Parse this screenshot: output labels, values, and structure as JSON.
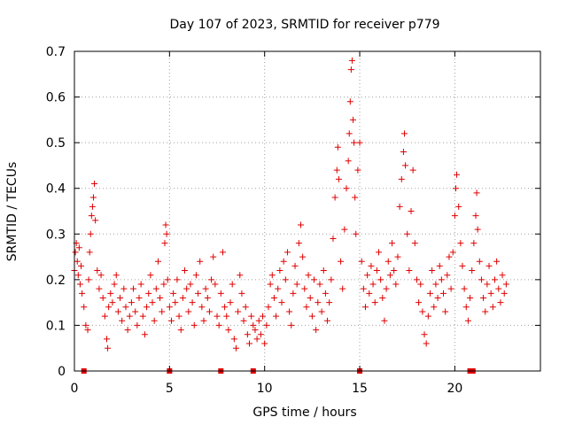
{
  "chart_data": {
    "type": "scatter",
    "title": "Day 107 of 2023, SRMTID for receiver p779",
    "xlabel": "GPS time / hours",
    "ylabel": "SRMTID / TECUs",
    "xlim": [
      0,
      24.5
    ],
    "ylim": [
      0,
      0.7
    ],
    "xticks": [
      0,
      5,
      10,
      15,
      20
    ],
    "yticks": [
      0,
      0.1,
      0.2,
      0.3,
      0.4,
      0.5,
      0.6,
      0.7
    ],
    "xtick_labels": [
      "0",
      "5",
      "10",
      "15",
      "20"
    ],
    "ytick_labels": [
      "0",
      "0.1",
      "0.2",
      "0.3",
      "0.4",
      "0.5",
      "0.6",
      "0.7"
    ],
    "grid": true,
    "marker": "plus",
    "color": "#e00000",
    "baseline_markers_x": [
      0.5,
      5.0,
      7.7,
      9.4,
      15.0,
      20.8,
      20.95
    ],
    "series": [
      {
        "name": "p779",
        "points": [
          [
            0.0,
            0.22
          ],
          [
            0.05,
            0.26
          ],
          [
            0.1,
            0.28
          ],
          [
            0.15,
            0.24
          ],
          [
            0.2,
            0.21
          ],
          [
            0.25,
            0.27
          ],
          [
            0.3,
            0.19
          ],
          [
            0.35,
            0.23
          ],
          [
            0.4,
            0.17
          ],
          [
            0.5,
            0.14
          ],
          [
            0.6,
            0.1
          ],
          [
            0.7,
            0.09
          ],
          [
            0.75,
            0.2
          ],
          [
            0.8,
            0.26
          ],
          [
            0.85,
            0.3
          ],
          [
            0.9,
            0.34
          ],
          [
            0.95,
            0.36
          ],
          [
            1.0,
            0.38
          ],
          [
            1.05,
            0.41
          ],
          [
            1.1,
            0.33
          ],
          [
            1.2,
            0.22
          ],
          [
            1.3,
            0.18
          ],
          [
            1.4,
            0.21
          ],
          [
            1.5,
            0.16
          ],
          [
            1.6,
            0.12
          ],
          [
            1.7,
            0.07
          ],
          [
            1.75,
            0.05
          ],
          [
            1.8,
            0.14
          ],
          [
            1.9,
            0.17
          ],
          [
            2.0,
            0.15
          ],
          [
            2.1,
            0.19
          ],
          [
            2.2,
            0.21
          ],
          [
            2.3,
            0.13
          ],
          [
            2.4,
            0.16
          ],
          [
            2.5,
            0.11
          ],
          [
            2.6,
            0.18
          ],
          [
            2.7,
            0.14
          ],
          [
            2.8,
            0.09
          ],
          [
            2.9,
            0.12
          ],
          [
            3.0,
            0.15
          ],
          [
            3.1,
            0.18
          ],
          [
            3.2,
            0.13
          ],
          [
            3.3,
            0.1
          ],
          [
            3.4,
            0.16
          ],
          [
            3.5,
            0.19
          ],
          [
            3.6,
            0.12
          ],
          [
            3.7,
            0.08
          ],
          [
            3.8,
            0.14
          ],
          [
            3.9,
            0.17
          ],
          [
            4.0,
            0.21
          ],
          [
            4.1,
            0.15
          ],
          [
            4.2,
            0.11
          ],
          [
            4.3,
            0.18
          ],
          [
            4.4,
            0.24
          ],
          [
            4.5,
            0.16
          ],
          [
            4.6,
            0.13
          ],
          [
            4.7,
            0.19
          ],
          [
            4.75,
            0.28
          ],
          [
            4.8,
            0.32
          ],
          [
            4.85,
            0.3
          ],
          [
            4.9,
            0.2
          ],
          [
            5.0,
            0.14
          ],
          [
            5.1,
            0.11
          ],
          [
            5.2,
            0.17
          ],
          [
            5.3,
            0.15
          ],
          [
            5.4,
            0.2
          ],
          [
            5.5,
            0.12
          ],
          [
            5.6,
            0.09
          ],
          [
            5.7,
            0.16
          ],
          [
            5.8,
            0.22
          ],
          [
            5.9,
            0.18
          ],
          [
            6.0,
            0.13
          ],
          [
            6.1,
            0.19
          ],
          [
            6.2,
            0.15
          ],
          [
            6.3,
            0.1
          ],
          [
            6.4,
            0.21
          ],
          [
            6.5,
            0.17
          ],
          [
            6.6,
            0.24
          ],
          [
            6.7,
            0.14
          ],
          [
            6.8,
            0.11
          ],
          [
            6.9,
            0.18
          ],
          [
            7.0,
            0.16
          ],
          [
            7.1,
            0.13
          ],
          [
            7.2,
            0.2
          ],
          [
            7.3,
            0.25
          ],
          [
            7.4,
            0.19
          ],
          [
            7.5,
            0.12
          ],
          [
            7.6,
            0.1
          ],
          [
            7.7,
            0.17
          ],
          [
            7.8,
            0.26
          ],
          [
            7.9,
            0.14
          ],
          [
            8.0,
            0.12
          ],
          [
            8.1,
            0.09
          ],
          [
            8.2,
            0.15
          ],
          [
            8.3,
            0.19
          ],
          [
            8.4,
            0.07
          ],
          [
            8.5,
            0.05
          ],
          [
            8.6,
            0.13
          ],
          [
            8.7,
            0.21
          ],
          [
            8.8,
            0.17
          ],
          [
            8.9,
            0.11
          ],
          [
            9.0,
            0.14
          ],
          [
            9.1,
            0.08
          ],
          [
            9.2,
            0.06
          ],
          [
            9.3,
            0.12
          ],
          [
            9.4,
            0.1
          ],
          [
            9.5,
            0.09
          ],
          [
            9.6,
            0.07
          ],
          [
            9.7,
            0.11
          ],
          [
            9.8,
            0.08
          ],
          [
            9.9,
            0.12
          ],
          [
            10.0,
            0.06
          ],
          [
            10.1,
            0.1
          ],
          [
            10.2,
            0.14
          ],
          [
            10.3,
            0.19
          ],
          [
            10.4,
            0.21
          ],
          [
            10.5,
            0.16
          ],
          [
            10.6,
            0.12
          ],
          [
            10.7,
            0.18
          ],
          [
            10.8,
            0.22
          ],
          [
            10.9,
            0.15
          ],
          [
            11.0,
            0.24
          ],
          [
            11.1,
            0.2
          ],
          [
            11.2,
            0.26
          ],
          [
            11.3,
            0.13
          ],
          [
            11.4,
            0.1
          ],
          [
            11.5,
            0.17
          ],
          [
            11.6,
            0.23
          ],
          [
            11.7,
            0.19
          ],
          [
            11.8,
            0.28
          ],
          [
            11.9,
            0.32
          ],
          [
            12.0,
            0.25
          ],
          [
            12.1,
            0.18
          ],
          [
            12.2,
            0.14
          ],
          [
            12.3,
            0.21
          ],
          [
            12.4,
            0.16
          ],
          [
            12.5,
            0.12
          ],
          [
            12.6,
            0.2
          ],
          [
            12.7,
            0.09
          ],
          [
            12.8,
            0.15
          ],
          [
            12.9,
            0.19
          ],
          [
            13.0,
            0.13
          ],
          [
            13.1,
            0.22
          ],
          [
            13.2,
            0.17
          ],
          [
            13.3,
            0.11
          ],
          [
            13.4,
            0.15
          ],
          [
            13.5,
            0.2
          ],
          [
            13.6,
            0.29
          ],
          [
            13.7,
            0.38
          ],
          [
            13.8,
            0.44
          ],
          [
            13.85,
            0.49
          ],
          [
            13.9,
            0.42
          ],
          [
            14.0,
            0.24
          ],
          [
            14.1,
            0.18
          ],
          [
            14.2,
            0.31
          ],
          [
            14.3,
            0.4
          ],
          [
            14.4,
            0.46
          ],
          [
            14.45,
            0.52
          ],
          [
            14.5,
            0.59
          ],
          [
            14.55,
            0.66
          ],
          [
            14.6,
            0.68
          ],
          [
            14.65,
            0.55
          ],
          [
            14.7,
            0.5
          ],
          [
            14.75,
            0.38
          ],
          [
            14.8,
            0.3
          ],
          [
            14.9,
            0.44
          ],
          [
            15.0,
            0.5
          ],
          [
            15.1,
            0.24
          ],
          [
            15.2,
            0.18
          ],
          [
            15.3,
            0.14
          ],
          [
            15.4,
            0.21
          ],
          [
            15.5,
            0.17
          ],
          [
            15.6,
            0.23
          ],
          [
            15.7,
            0.19
          ],
          [
            15.8,
            0.15
          ],
          [
            15.9,
            0.22
          ],
          [
            16.0,
            0.26
          ],
          [
            16.1,
            0.2
          ],
          [
            16.2,
            0.16
          ],
          [
            16.3,
            0.11
          ],
          [
            16.4,
            0.18
          ],
          [
            16.5,
            0.24
          ],
          [
            16.6,
            0.21
          ],
          [
            16.7,
            0.28
          ],
          [
            16.8,
            0.22
          ],
          [
            16.9,
            0.19
          ],
          [
            17.0,
            0.25
          ],
          [
            17.1,
            0.36
          ],
          [
            17.2,
            0.42
          ],
          [
            17.3,
            0.48
          ],
          [
            17.35,
            0.52
          ],
          [
            17.4,
            0.45
          ],
          [
            17.5,
            0.3
          ],
          [
            17.6,
            0.22
          ],
          [
            17.7,
            0.35
          ],
          [
            17.8,
            0.44
          ],
          [
            17.9,
            0.28
          ],
          [
            18.0,
            0.2
          ],
          [
            18.1,
            0.15
          ],
          [
            18.2,
            0.19
          ],
          [
            18.3,
            0.13
          ],
          [
            18.4,
            0.08
          ],
          [
            18.5,
            0.06
          ],
          [
            18.6,
            0.12
          ],
          [
            18.7,
            0.17
          ],
          [
            18.8,
            0.22
          ],
          [
            18.9,
            0.14
          ],
          [
            19.0,
            0.19
          ],
          [
            19.1,
            0.16
          ],
          [
            19.2,
            0.23
          ],
          [
            19.3,
            0.2
          ],
          [
            19.4,
            0.17
          ],
          [
            19.5,
            0.13
          ],
          [
            19.6,
            0.21
          ],
          [
            19.7,
            0.25
          ],
          [
            19.8,
            0.18
          ],
          [
            19.9,
            0.26
          ],
          [
            20.0,
            0.34
          ],
          [
            20.05,
            0.4
          ],
          [
            20.1,
            0.43
          ],
          [
            20.2,
            0.36
          ],
          [
            20.3,
            0.28
          ],
          [
            20.4,
            0.23
          ],
          [
            20.5,
            0.18
          ],
          [
            20.6,
            0.14
          ],
          [
            20.7,
            0.11
          ],
          [
            20.8,
            0.16
          ],
          [
            20.9,
            0.22
          ],
          [
            21.0,
            0.28
          ],
          [
            21.1,
            0.34
          ],
          [
            21.15,
            0.39
          ],
          [
            21.2,
            0.31
          ],
          [
            21.3,
            0.24
          ],
          [
            21.4,
            0.2
          ],
          [
            21.5,
            0.16
          ],
          [
            21.6,
            0.13
          ],
          [
            21.7,
            0.19
          ],
          [
            21.8,
            0.23
          ],
          [
            21.9,
            0.17
          ],
          [
            22.0,
            0.14
          ],
          [
            22.1,
            0.2
          ],
          [
            22.2,
            0.24
          ],
          [
            22.3,
            0.18
          ],
          [
            22.4,
            0.15
          ],
          [
            22.5,
            0.21
          ],
          [
            22.6,
            0.17
          ],
          [
            22.7,
            0.19
          ]
        ]
      }
    ]
  }
}
